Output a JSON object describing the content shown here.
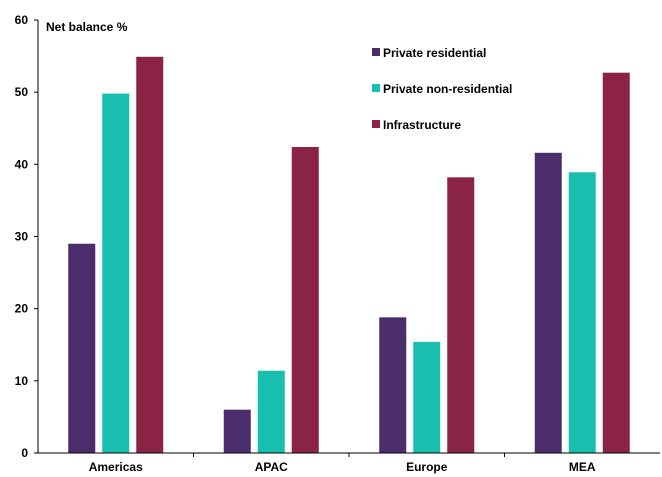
{
  "chart_data": {
    "type": "bar",
    "ylabel": "Net balance %",
    "xlabel": "",
    "ylim": [
      0,
      60
    ],
    "yticks": [
      "0",
      "10",
      "20",
      "30",
      "40",
      "50",
      "60"
    ],
    "grid": false,
    "legend_position": "top-right",
    "categories": [
      "Americas",
      "APAC",
      "Europe",
      "MEA"
    ],
    "series": [
      {
        "name": "Private residential",
        "color": "#4b2d6b",
        "values": [
          29,
          6,
          18.8,
          41.6
        ]
      },
      {
        "name": "Private non-residential",
        "color": "#19bfae",
        "values": [
          49.8,
          11.4,
          15.4,
          38.9
        ]
      },
      {
        "name": "Infrastructure",
        "color": "#8b2346",
        "values": [
          54.9,
          42.4,
          38.2,
          52.7
        ]
      }
    ]
  }
}
